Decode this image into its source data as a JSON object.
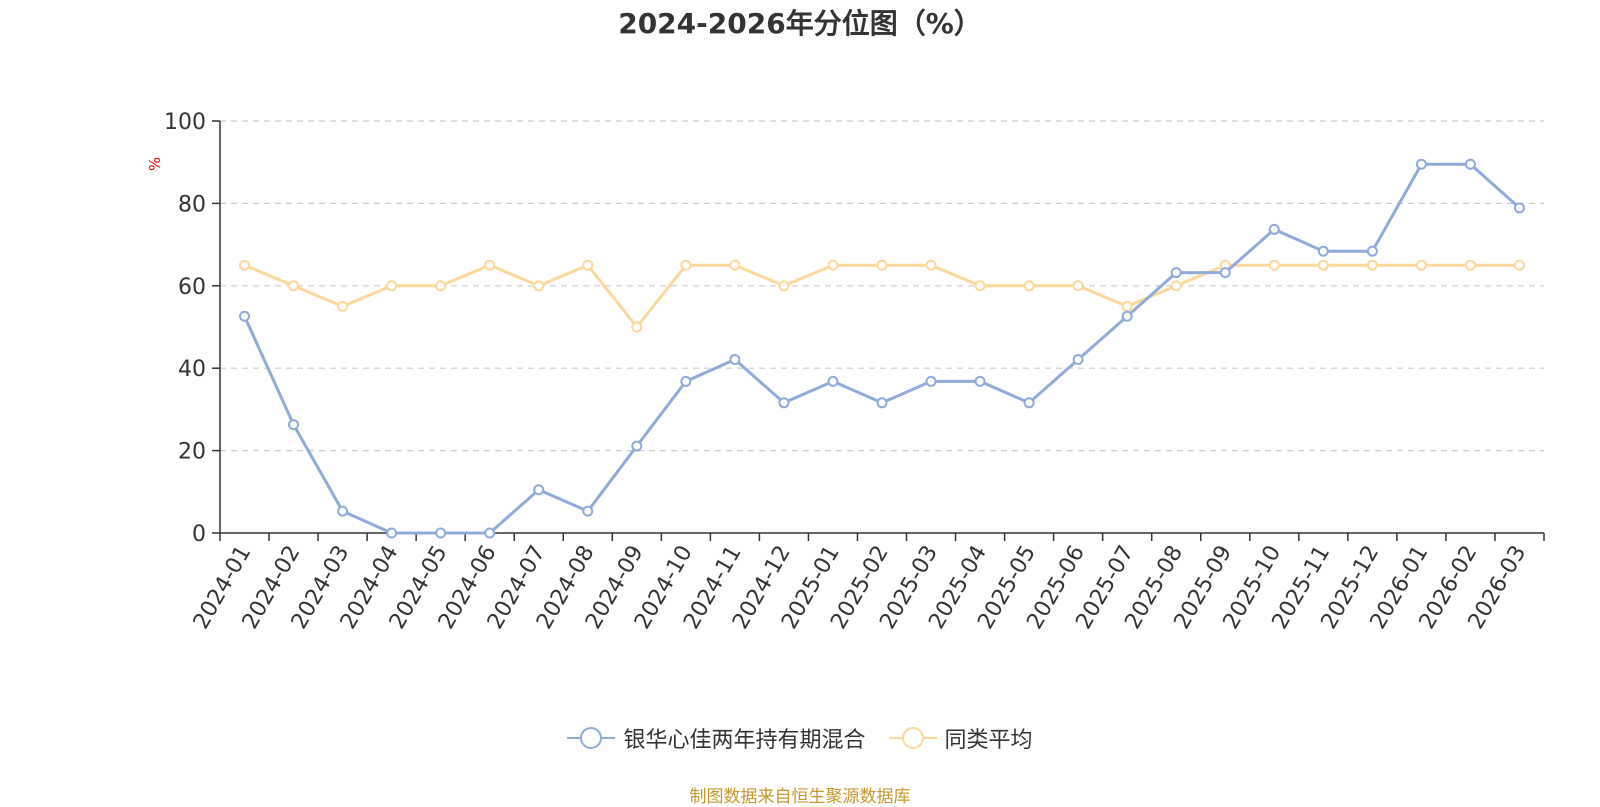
{
  "chart_data": {
    "type": "line",
    "title": "2024-2026年分位图（%）",
    "ylabel": "%",
    "ylim": [
      0,
      100
    ],
    "yticks": [
      0,
      20,
      40,
      60,
      80,
      100
    ],
    "grid": true,
    "legend_position": "bottom",
    "categories": [
      "2024-01",
      "2024-02",
      "2024-03",
      "2024-04",
      "2024-05",
      "2024-06",
      "2024-07",
      "2024-08",
      "2024-09",
      "2024-10",
      "2024-11",
      "2024-12",
      "2025-01",
      "2025-02",
      "2025-03",
      "2025-04",
      "2025-05",
      "2025-06",
      "2025-07",
      "2025-08",
      "2025-09",
      "2025-10",
      "2025-11",
      "2025-12",
      "2026-01",
      "2026-02",
      "2026-03"
    ],
    "series": [
      {
        "name": "银华心佳两年持有期混合",
        "color": "#8eabd9",
        "values": [
          52.6,
          26.3,
          5.3,
          0,
          0,
          0,
          10.5,
          5.3,
          21.1,
          36.8,
          42.1,
          31.6,
          36.8,
          31.6,
          36.8,
          36.8,
          31.6,
          42.1,
          52.6,
          63.2,
          63.2,
          73.7,
          68.4,
          68.4,
          89.5,
          89.5,
          78.9
        ]
      },
      {
        "name": "同类平均",
        "color": "#fcd99a",
        "values": [
          65,
          60,
          55,
          60,
          60,
          65,
          60,
          65,
          50,
          65,
          65,
          60,
          65,
          65,
          65,
          60,
          60,
          60,
          55,
          60,
          65,
          65,
          65,
          65,
          65,
          65,
          65
        ]
      }
    ]
  },
  "source_note": "制图数据来自恒生聚源数据库"
}
